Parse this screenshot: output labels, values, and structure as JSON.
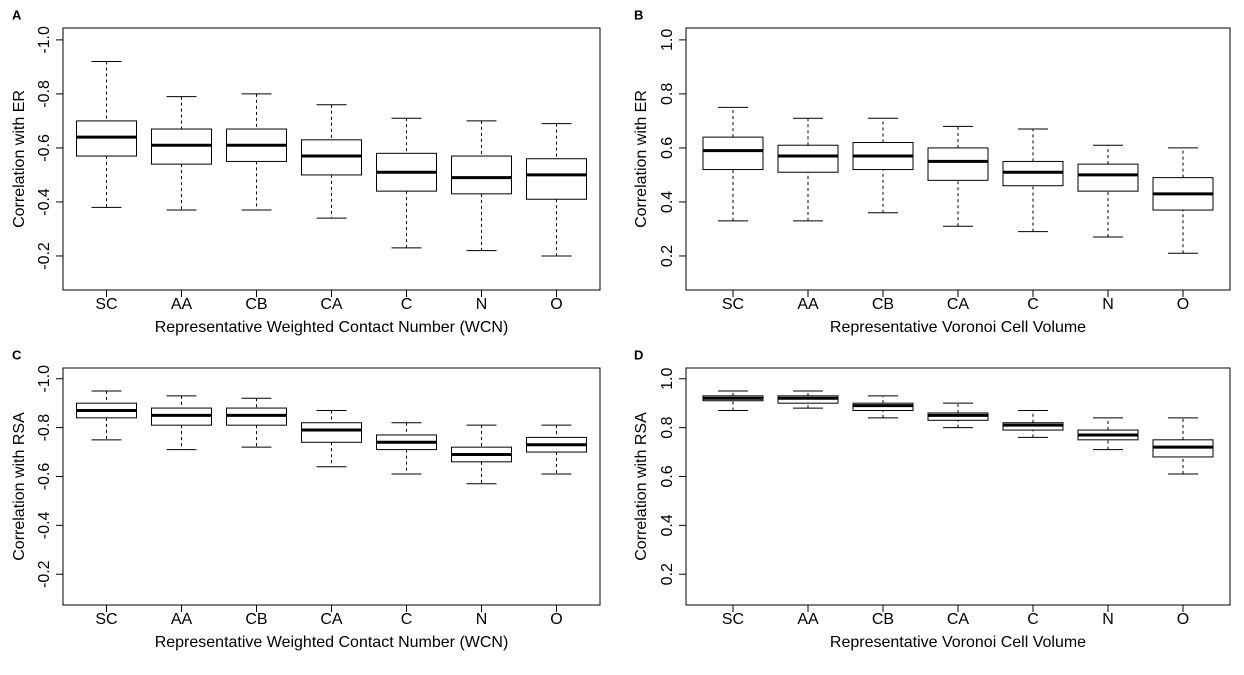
{
  "chart_data": [
    {
      "type": "box",
      "panel": "A",
      "ylabel": "Correlation with ER",
      "xlabel": "Representative Weighted Contact Number (WCN)",
      "categories": [
        "SC",
        "AA",
        "CB",
        "CA",
        "C",
        "N",
        "O"
      ],
      "min": [
        -0.92,
        -0.79,
        -0.8,
        -0.76,
        -0.71,
        -0.7,
        -0.69
      ],
      "q1": [
        -0.7,
        -0.67,
        -0.67,
        -0.63,
        -0.58,
        -0.57,
        -0.56
      ],
      "median": [
        -0.64,
        -0.61,
        -0.61,
        -0.57,
        -0.51,
        -0.49,
        -0.5
      ],
      "q3": [
        -0.57,
        -0.54,
        -0.55,
        -0.5,
        -0.44,
        -0.43,
        -0.41
      ],
      "max": [
        -0.38,
        -0.37,
        -0.37,
        -0.34,
        -0.23,
        -0.22,
        -0.2
      ],
      "ylim": [
        -0.074,
        -1.044
      ],
      "yticks": [
        {
          "value": -1,
          "label": "-1.0"
        },
        -0.8,
        -0.6,
        -0.4,
        -0.2
      ]
    },
    {
      "type": "box",
      "panel": "B",
      "ylabel": "Correlation with ER",
      "xlabel": "Representative Voronoi Cell Volume",
      "categories": [
        "SC",
        "AA",
        "CB",
        "CA",
        "C",
        "N",
        "O"
      ],
      "min": [
        0.33,
        0.33,
        0.36,
        0.31,
        0.29,
        0.27,
        0.21
      ],
      "q1": [
        0.52,
        0.51,
        0.52,
        0.48,
        0.46,
        0.44,
        0.37
      ],
      "median": [
        0.59,
        0.57,
        0.57,
        0.55,
        0.51,
        0.5,
        0.43
      ],
      "q3": [
        0.64,
        0.61,
        0.62,
        0.6,
        0.55,
        0.54,
        0.49
      ],
      "max": [
        0.75,
        0.71,
        0.71,
        0.68,
        0.67,
        0.61,
        0.6
      ],
      "ylim": [
        0.074,
        1.044
      ],
      "yticks": [
        {
          "value": 1,
          "label": "1.0"
        },
        0.8,
        0.6,
        0.4,
        0.2
      ]
    },
    {
      "type": "box",
      "panel": "C",
      "ylabel": "Correlation with RSA",
      "xlabel": "Representative Weighted Contact Number (WCN)",
      "categories": [
        "SC",
        "AA",
        "CB",
        "CA",
        "C",
        "N",
        "O"
      ],
      "min": [
        -0.95,
        -0.93,
        -0.92,
        -0.87,
        -0.82,
        -0.81,
        -0.81
      ],
      "q1": [
        -0.9,
        -0.88,
        -0.88,
        -0.82,
        -0.77,
        -0.72,
        -0.76
      ],
      "median": [
        -0.87,
        -0.85,
        -0.85,
        -0.79,
        -0.74,
        -0.69,
        -0.73
      ],
      "q3": [
        -0.84,
        -0.81,
        -0.81,
        -0.74,
        -0.71,
        -0.66,
        -0.7
      ],
      "max": [
        -0.75,
        -0.71,
        -0.72,
        -0.64,
        -0.61,
        -0.57,
        -0.61
      ],
      "ylim": [
        -0.074,
        -1.044
      ],
      "yticks": [
        {
          "value": -1,
          "label": "-1.0"
        },
        -0.8,
        -0.6,
        -0.4,
        -0.2
      ]
    },
    {
      "type": "box",
      "panel": "D",
      "ylabel": "Correlation with RSA",
      "xlabel": "Representative Voronoi Cell Volume",
      "categories": [
        "SC",
        "AA",
        "CB",
        "CA",
        "C",
        "N",
        "O"
      ],
      "min": [
        0.87,
        0.88,
        0.84,
        0.8,
        0.76,
        0.71,
        0.61
      ],
      "q1": [
        0.91,
        0.9,
        0.87,
        0.83,
        0.79,
        0.75,
        0.68
      ],
      "median": [
        0.92,
        0.92,
        0.89,
        0.85,
        0.81,
        0.77,
        0.72
      ],
      "q3": [
        0.93,
        0.93,
        0.9,
        0.86,
        0.82,
        0.79,
        0.75
      ],
      "max": [
        0.95,
        0.95,
        0.93,
        0.9,
        0.87,
        0.84,
        0.84
      ],
      "ylim": [
        0.074,
        1.044
      ],
      "yticks": [
        {
          "value": 1,
          "label": "1.0"
        },
        0.8,
        0.6,
        0.4,
        0.2
      ]
    }
  ]
}
